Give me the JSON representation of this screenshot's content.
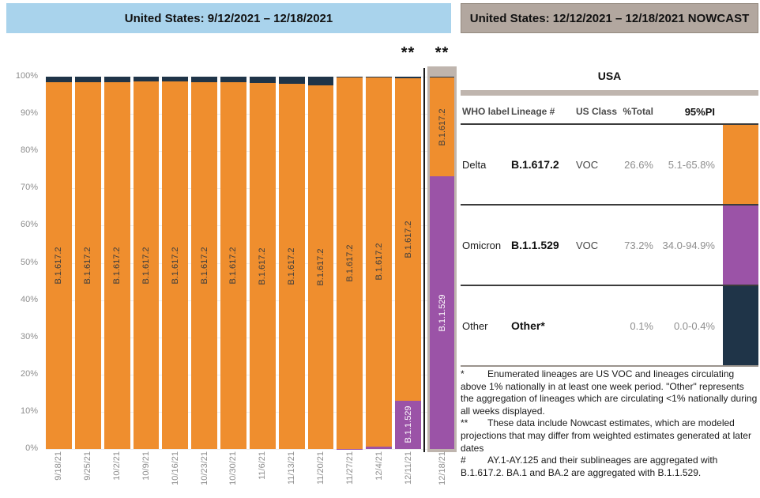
{
  "left_panel": {
    "title": "United States: 9/12/2021 – 12/18/2021",
    "flag_symbol": "**"
  },
  "chart_data": {
    "type": "bar",
    "stacked": true,
    "title": "United States: 9/12/2021 – 12/18/2021",
    "xlabel": "",
    "ylabel": "",
    "ylim": [
      0,
      100
    ],
    "ytick_step": 10,
    "ytick_format": "percent",
    "grid": true,
    "legend_position": "none",
    "categories": [
      "9/18/21",
      "9/25/21",
      "10/2/21",
      "10/9/21",
      "10/16/21",
      "10/23/21",
      "10/30/21",
      "11/6/21",
      "11/13/21",
      "11/20/21",
      "11/27/21",
      "12/4/21",
      "12/11/21",
      "12/18/21"
    ],
    "series": [
      {
        "name": "B.1.1.529",
        "who_label": "Omicron",
        "color": "#9B53A7",
        "label_color": "#FFFFFF",
        "values": [
          0,
          0,
          0,
          0,
          0,
          0,
          0,
          0,
          0,
          0,
          0.1,
          0.7,
          13.0,
          73.2
        ]
      },
      {
        "name": "B.1.617.2",
        "who_label": "Delta",
        "color": "#EF8E2E",
        "label_color": "#3D3D3D",
        "values": [
          98.6,
          98.6,
          98.6,
          98.7,
          98.7,
          98.6,
          98.5,
          98.2,
          98.1,
          97.7,
          99.7,
          99.1,
          86.6,
          26.6
        ]
      },
      {
        "name": "Other",
        "who_label": "Other",
        "color": "#1F3448",
        "label_color": "#FFFFFF",
        "values": [
          1.4,
          1.4,
          1.4,
          1.3,
          1.3,
          1.4,
          1.5,
          1.8,
          1.9,
          2.3,
          0.2,
          0.2,
          0.4,
          0.1
        ]
      }
    ],
    "nowcast_index": 13,
    "flagged_indices": [
      12,
      13
    ],
    "flag_symbol": "**"
  },
  "right_panel": {
    "title": "United States: 12/12/2021 – 12/18/2021 NOWCAST",
    "region_label": "USA",
    "table": {
      "columns": {
        "who": "WHO label",
        "lineage": "Lineage #",
        "us_class": "US Class",
        "pct_total": "%Total",
        "pi": "95%PI"
      },
      "rows": [
        {
          "who": "Delta",
          "lineage": "B.1.617.2",
          "us_class": "VOC",
          "pct_total": "26.6%",
          "pi": "5.1-65.8%",
          "color": "#EF8E2E"
        },
        {
          "who": "Omicron",
          "lineage": "B.1.1.529",
          "us_class": "VOC",
          "pct_total": "73.2%",
          "pi": "34.0-94.9%",
          "color": "#9B53A7"
        },
        {
          "who": "Other",
          "lineage": "Other*",
          "us_class": "",
          "pct_total": "0.1%",
          "pi": "0.0-0.4%",
          "color": "#1F3448"
        }
      ]
    },
    "footnotes": [
      {
        "marker": "*",
        "text": "Enumerated lineages are US VOC and lineages circulating above 1% nationally in at least one week period. \"Other\" represents the aggregation of lineages which are circulating <1% nationally during all weeks displayed."
      },
      {
        "marker": "**",
        "text": "These data include Nowcast estimates, which are modeled projections that may differ from weighted estimates generated at later dates"
      },
      {
        "marker": "#",
        "text": "AY.1-AY.125 and their sublineages are aggregated with B.1.617.2. BA.1 and BA.2 are aggregated with B.1.1.529."
      }
    ]
  },
  "colors": {
    "delta_orange": "#EF8E2E",
    "omicron_purple": "#9B53A7",
    "other_navy": "#1F3448",
    "left_header_bg": "#A9D3EC",
    "right_header_bg": "#B2A79F",
    "nowcast_frame": "#BFB5AE",
    "gridline": "#EDEDED",
    "axis_text": "#8E8E8E"
  }
}
